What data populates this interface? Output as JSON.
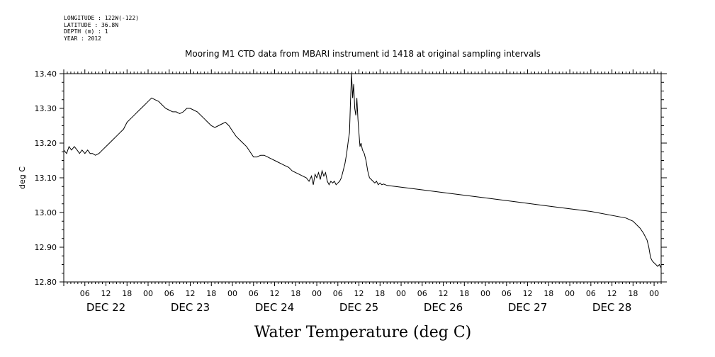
{
  "header": {
    "longitude": "LONGITUDE : 122W(-122)",
    "latitude": "LATITUDE : 36.8N",
    "depth": "DEPTH (m) : 1",
    "year": "YEAR : 2012"
  },
  "chart_data": {
    "type": "line",
    "title": "Mooring M1 CTD data from MBARI instrument id 1418 at original sampling intervals",
    "xlabel": "Water Temperature (deg C)",
    "ylabel": "deg C",
    "ylim": [
      12.8,
      13.4
    ],
    "xlim_hours": [
      0,
      170
    ],
    "x_unit": "hours from DEC 22 00:00 (2012)",
    "y_ticks": [
      "12.80",
      "12.90",
      "13.00",
      "13.10",
      "13.20",
      "13.30",
      "13.40"
    ],
    "x_hour_labels": [
      "06",
      "12",
      "18",
      "00",
      "06",
      "12",
      "18",
      "00",
      "06",
      "12",
      "18",
      "00",
      "06",
      "12",
      "18",
      "00",
      "06",
      "12",
      "18",
      "00",
      "06",
      "12",
      "18",
      "00",
      "06",
      "12",
      "18",
      "00"
    ],
    "day_labels": [
      "DEC 22",
      "DEC 23",
      "DEC 24",
      "DEC 25",
      "DEC 26",
      "DEC 27",
      "DEC 28"
    ],
    "grid": false,
    "series": [
      {
        "color": "#000000",
        "points": [
          [
            0.0,
            13.18
          ],
          [
            0.8,
            13.17
          ],
          [
            1.5,
            13.19
          ],
          [
            2.2,
            13.18
          ],
          [
            3.0,
            13.19
          ],
          [
            3.8,
            13.18
          ],
          [
            4.5,
            13.17
          ],
          [
            5.2,
            13.18
          ],
          [
            6.0,
            13.17
          ],
          [
            6.8,
            13.18
          ],
          [
            7.5,
            13.17
          ],
          [
            8.2,
            13.17
          ],
          [
            9.0,
            13.165
          ],
          [
            10.0,
            13.17
          ],
          [
            11.0,
            13.18
          ],
          [
            12.0,
            13.19
          ],
          [
            13.0,
            13.2
          ],
          [
            14.0,
            13.21
          ],
          [
            15.0,
            13.22
          ],
          [
            16.0,
            13.23
          ],
          [
            17.0,
            13.24
          ],
          [
            18.0,
            13.26
          ],
          [
            19.0,
            13.27
          ],
          [
            20.0,
            13.28
          ],
          [
            21.0,
            13.29
          ],
          [
            22.0,
            13.3
          ],
          [
            23.0,
            13.31
          ],
          [
            24.0,
            13.32
          ],
          [
            25.0,
            13.33
          ],
          [
            26.0,
            13.325
          ],
          [
            27.0,
            13.32
          ],
          [
            28.0,
            13.31
          ],
          [
            29.0,
            13.3
          ],
          [
            30.0,
            13.295
          ],
          [
            31.0,
            13.29
          ],
          [
            32.0,
            13.29
          ],
          [
            33.0,
            13.285
          ],
          [
            34.0,
            13.29
          ],
          [
            35.0,
            13.3
          ],
          [
            36.0,
            13.3
          ],
          [
            37.0,
            13.295
          ],
          [
            38.0,
            13.29
          ],
          [
            39.0,
            13.28
          ],
          [
            40.0,
            13.27
          ],
          [
            41.0,
            13.26
          ],
          [
            42.0,
            13.25
          ],
          [
            43.0,
            13.245
          ],
          [
            44.0,
            13.25
          ],
          [
            45.0,
            13.255
          ],
          [
            46.0,
            13.26
          ],
          [
            47.0,
            13.25
          ],
          [
            48.0,
            13.235
          ],
          [
            49.0,
            13.22
          ],
          [
            50.0,
            13.21
          ],
          [
            51.0,
            13.2
          ],
          [
            52.0,
            13.19
          ],
          [
            53.0,
            13.175
          ],
          [
            54.0,
            13.16
          ],
          [
            55.0,
            13.16
          ],
          [
            56.0,
            13.165
          ],
          [
            57.0,
            13.165
          ],
          [
            58.0,
            13.16
          ],
          [
            59.0,
            13.155
          ],
          [
            60.0,
            13.15
          ],
          [
            61.0,
            13.145
          ],
          [
            62.0,
            13.14
          ],
          [
            63.0,
            13.135
          ],
          [
            64.0,
            13.13
          ],
          [
            65.0,
            13.12
          ],
          [
            66.0,
            13.115
          ],
          [
            67.0,
            13.11
          ],
          [
            68.0,
            13.105
          ],
          [
            69.0,
            13.1
          ],
          [
            69.8,
            13.09
          ],
          [
            70.5,
            13.105
          ],
          [
            71.0,
            13.08
          ],
          [
            71.5,
            13.11
          ],
          [
            72.0,
            13.1
          ],
          [
            72.5,
            13.115
          ],
          [
            73.0,
            13.095
          ],
          [
            73.5,
            13.12
          ],
          [
            74.0,
            13.105
          ],
          [
            74.5,
            13.115
          ],
          [
            75.0,
            13.09
          ],
          [
            75.5,
            13.08
          ],
          [
            76.0,
            13.09
          ],
          [
            76.5,
            13.085
          ],
          [
            77.0,
            13.09
          ],
          [
            77.5,
            13.08
          ],
          [
            78.0,
            13.085
          ],
          [
            78.5,
            13.09
          ],
          [
            79.0,
            13.1
          ],
          [
            79.5,
            13.12
          ],
          [
            80.0,
            13.14
          ],
          [
            80.5,
            13.17
          ],
          [
            81.0,
            13.21
          ],
          [
            81.3,
            13.23
          ],
          [
            81.6,
            13.32
          ],
          [
            81.9,
            13.4
          ],
          [
            82.2,
            13.33
          ],
          [
            82.5,
            13.37
          ],
          [
            82.8,
            13.3
          ],
          [
            83.1,
            13.28
          ],
          [
            83.4,
            13.33
          ],
          [
            83.7,
            13.27
          ],
          [
            84.0,
            13.23
          ],
          [
            84.3,
            13.19
          ],
          [
            84.6,
            13.2
          ],
          [
            85.0,
            13.18
          ],
          [
            85.5,
            13.17
          ],
          [
            86.0,
            13.15
          ],
          [
            86.5,
            13.12
          ],
          [
            87.0,
            13.1
          ],
          [
            87.5,
            13.095
          ],
          [
            88.0,
            13.09
          ],
          [
            88.5,
            13.085
          ],
          [
            89.0,
            13.09
          ],
          [
            89.5,
            13.08
          ],
          [
            90.0,
            13.085
          ],
          [
            90.5,
            13.08
          ],
          [
            91.0,
            13.082
          ],
          [
            92.0,
            13.078
          ],
          [
            100.0,
            13.068
          ],
          [
            110.0,
            13.055
          ],
          [
            120.0,
            13.042
          ],
          [
            130.0,
            13.029
          ],
          [
            140.0,
            13.016
          ],
          [
            150.0,
            13.003
          ],
          [
            160.0,
            12.984
          ],
          [
            162.0,
            12.975
          ],
          [
            164.0,
            12.955
          ],
          [
            165.0,
            12.94
          ],
          [
            165.5,
            12.93
          ],
          [
            166.0,
            12.92
          ],
          [
            166.5,
            12.9
          ],
          [
            167.0,
            12.87
          ],
          [
            167.5,
            12.86
          ],
          [
            168.0,
            12.855
          ],
          [
            168.5,
            12.85
          ],
          [
            169.0,
            12.845
          ],
          [
            169.5,
            12.85
          ],
          [
            170.0,
            12.84
          ]
        ]
      }
    ]
  }
}
